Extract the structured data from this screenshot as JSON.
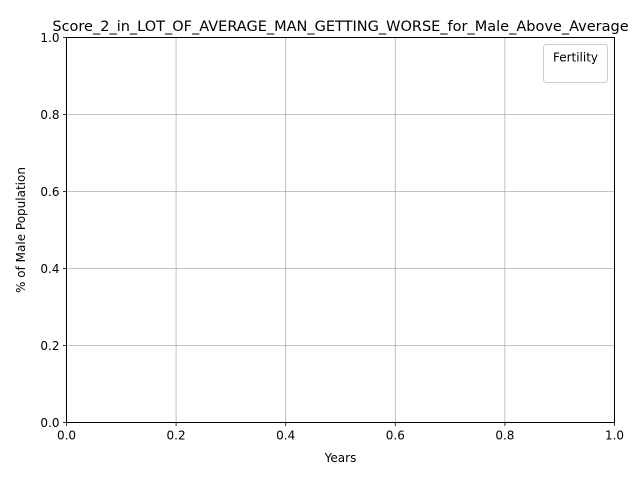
{
  "chart_data": {
    "type": "line",
    "title": "Score_2_in_LOT_OF_AVERAGE_MAN_GETTING_WORSE_for_Male_Above_Average",
    "xlabel": "Years",
    "ylabel": "% of Male Population",
    "xlim": [
      0.0,
      1.0
    ],
    "ylim": [
      0.0,
      1.0
    ],
    "x_ticks": [
      "0.0",
      "0.2",
      "0.4",
      "0.6",
      "0.8",
      "1.0"
    ],
    "y_ticks": [
      "0.0",
      "0.2",
      "0.4",
      "0.6",
      "0.8",
      "1.0"
    ],
    "grid": true,
    "legend": {
      "title": "Fertility",
      "placement": "top-right",
      "entries": []
    },
    "series": []
  },
  "colors": {
    "background": "#ffffff",
    "grid": "#b0b0b0",
    "axes": "#000000",
    "text": "#000000",
    "legend_border": "#cccccc"
  }
}
